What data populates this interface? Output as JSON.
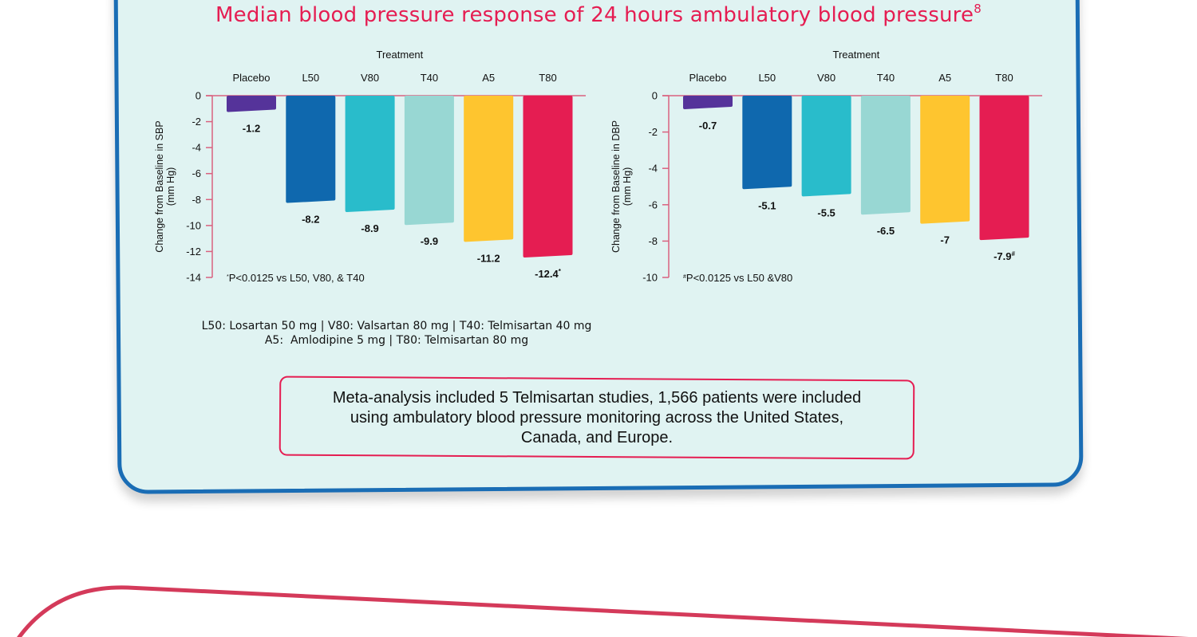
{
  "title": "Median blood pressure response of 24 hours ambulatory blood pressure",
  "title_superscript": "8",
  "colors": {
    "accent": "#e51d52",
    "panel_border": "#1a6db5",
    "panel_bg": "#e0f3f2",
    "bottom_curve": "#d43a5a"
  },
  "chart_data": [
    {
      "type": "bar",
      "title": "",
      "xlabel": "Treatment",
      "ylabel": "Change from Baseline in SBP (mm Hg)",
      "ylabel_lines": [
        "Change from Baseline in SBP",
        "(mm Hg)"
      ],
      "categories": [
        "Placebo",
        "L50",
        "V80",
        "T40",
        "A5",
        "T80"
      ],
      "values": [
        -1.2,
        -8.2,
        -8.9,
        -9.9,
        -11.2,
        -12.4
      ],
      "data_labels": [
        "-1.2",
        "-8.2",
        "-8.9",
        "-9.9",
        "-11.2",
        "-12.4*"
      ],
      "bar_colors": [
        "#55339a",
        "#0f68ae",
        "#29bccb",
        "#98d7d3",
        "#fec52f",
        "#e51d52"
      ],
      "yticks": [
        0,
        -2,
        -4,
        -6,
        -8,
        -10,
        -12,
        -14
      ],
      "ylim": [
        -14,
        0
      ],
      "grid": false,
      "footnote": "*P<0.0125 vs L50, V80, & T40"
    },
    {
      "type": "bar",
      "title": "",
      "xlabel": "Treatment",
      "ylabel": "Change from Baseline in DBP (mm Hg)",
      "ylabel_lines": [
        "Change from Baseline in DBP",
        "(mm Hg)"
      ],
      "categories": [
        "Placebo",
        "L50",
        "V80",
        "T40",
        "A5",
        "T80"
      ],
      "values": [
        -0.7,
        -5.1,
        -5.5,
        -6.5,
        -7.0,
        -7.9
      ],
      "data_labels": [
        "-0.7",
        "-5.1",
        "-5.5",
        "-6.5",
        "-7",
        "-7.9#"
      ],
      "bar_colors": [
        "#55339a",
        "#0f68ae",
        "#29bccb",
        "#98d7d3",
        "#fec52f",
        "#e51d52"
      ],
      "yticks": [
        0,
        -2,
        -4,
        -6,
        -8,
        -10
      ],
      "ylim": [
        -10,
        0
      ],
      "grid": false,
      "footnote": "#P<0.0125 vs L50 &V80"
    }
  ],
  "legend_text": "L50: Losartan 50 mg | V80: Valsartan 80 mg | T40: Telmisartan 40 mg\nA5:  Amlodipine 5 mg | T80: Telmisartan 80 mg",
  "note": "Meta-analysis included 5 Telmisartan studies, 1,566 patients were included using ambulatory blood pressure monitoring across the United States, Canada, and Europe."
}
